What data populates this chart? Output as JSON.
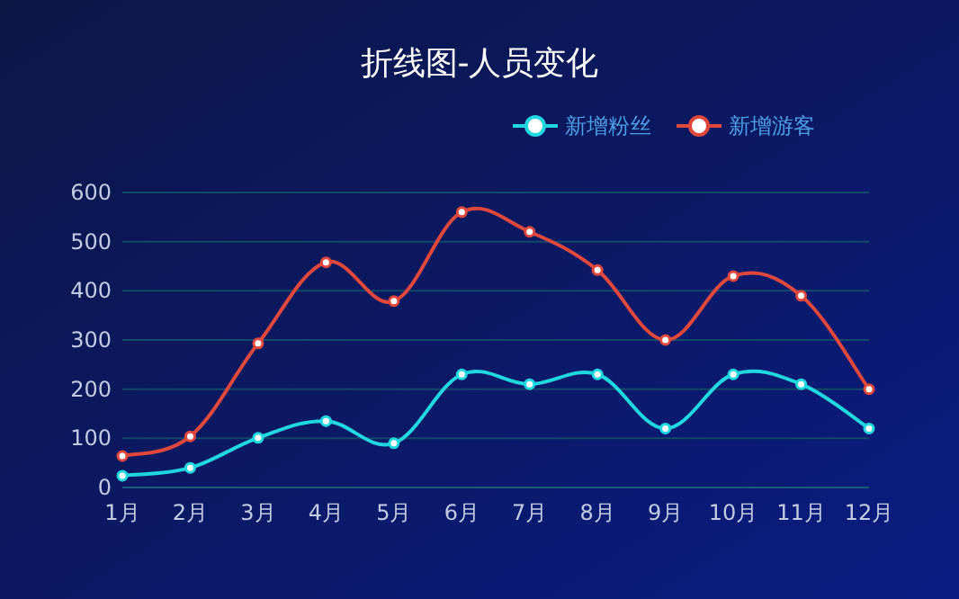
{
  "chart_data": {
    "type": "line",
    "title": "折线图-人员变化",
    "categories": [
      "1月",
      "2月",
      "3月",
      "4月",
      "5月",
      "6月",
      "7月",
      "8月",
      "9月",
      "10月",
      "11月",
      "12月"
    ],
    "series": [
      {
        "name": "新增粉丝",
        "color": "#22d8e0",
        "values": [
          24,
          40,
          101,
          135,
          90,
          230,
          210,
          230,
          120,
          230,
          210,
          120
        ]
      },
      {
        "name": "新增游客",
        "color": "#e0483e",
        "values": [
          64,
          104,
          293,
          458,
          379,
          560,
          520,
          442,
          300,
          430,
          390,
          200
        ]
      }
    ],
    "ylim": [
      0,
      600
    ],
    "yticks": [
      0,
      100,
      200,
      300,
      400,
      500,
      600
    ],
    "grid": "y",
    "legend": "top right",
    "marker": "circle",
    "line_style": "solid"
  }
}
